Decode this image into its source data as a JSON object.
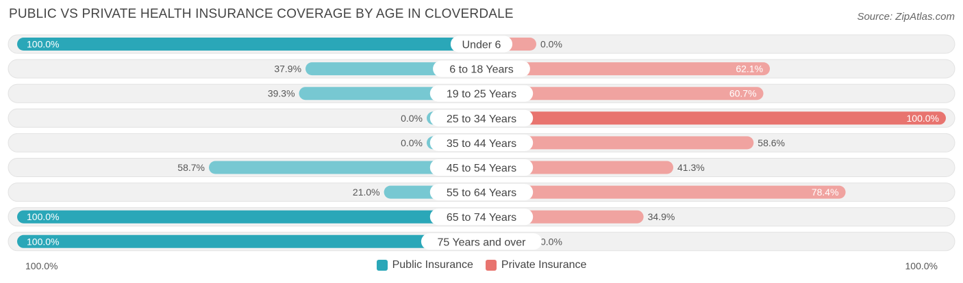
{
  "title": "PUBLIC VS PRIVATE HEALTH INSURANCE COVERAGE BY AGE IN CLOVERDALE",
  "source": "Source: ZipAtlas.com",
  "axis": {
    "left_label": "100.0%",
    "right_label": "100.0%"
  },
  "legend": {
    "public_label": "Public Insurance",
    "private_label": "Private Insurance"
  },
  "colors": {
    "public": "#2aa7b8",
    "public_light": "#77c8d2",
    "private": "#e8746f",
    "private_light": "#f0a3a0",
    "track": "#f1f1f1"
  },
  "chart_data": {
    "type": "bar",
    "orientation": "diverging-horizontal",
    "title": "PUBLIC VS PRIVATE HEALTH INSURANCE COVERAGE BY AGE IN CLOVERDALE",
    "categories": [
      "Under 6",
      "6 to 18 Years",
      "19 to 25 Years",
      "25 to 34 Years",
      "35 to 44 Years",
      "45 to 54 Years",
      "55 to 64 Years",
      "65 to 74 Years",
      "75 Years and over"
    ],
    "series": [
      {
        "name": "Public Insurance",
        "values": [
          100.0,
          37.9,
          39.3,
          0.0,
          0.0,
          58.7,
          21.0,
          100.0,
          100.0
        ],
        "labels": [
          "100.0%",
          "37.9%",
          "39.3%",
          "0.0%",
          "0.0%",
          "58.7%",
          "21.0%",
          "100.0%",
          "100.0%"
        ]
      },
      {
        "name": "Private Insurance",
        "values": [
          0.0,
          62.1,
          60.7,
          100.0,
          58.6,
          41.3,
          78.4,
          34.9,
          0.0
        ],
        "labels": [
          "0.0%",
          "62.1%",
          "60.7%",
          "100.0%",
          "58.6%",
          "41.3%",
          "78.4%",
          "34.9%",
          "0.0%"
        ]
      }
    ],
    "xlim": [
      0,
      100
    ],
    "legend_position": "bottom-center"
  }
}
